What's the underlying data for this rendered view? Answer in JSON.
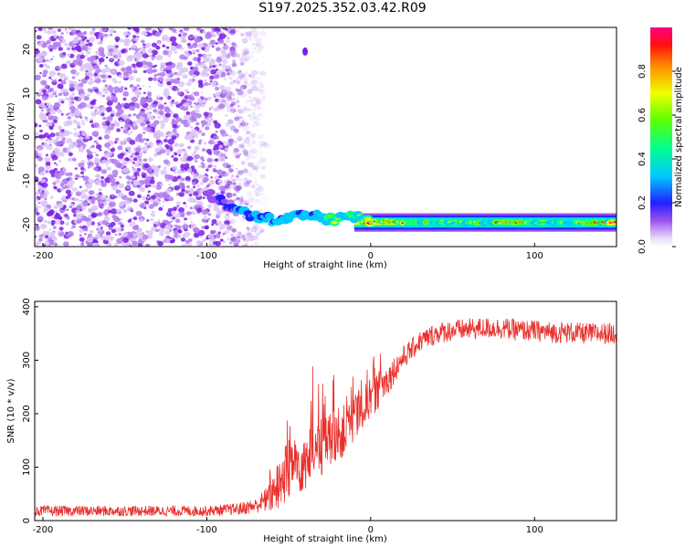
{
  "title": "S197.2025.352.03.42.R09",
  "colors": {
    "snr_line": "#e8302c",
    "speckle": "#8a2be2",
    "axis": "#000000"
  },
  "chart_data": [
    {
      "type": "heatmap",
      "title": "",
      "xlabel": "Height of straight line (km)",
      "ylabel": "Frequency (Hz)",
      "xlim": [
        -205,
        150
      ],
      "ylim": [
        -25,
        25
      ],
      "xticks": [
        -200,
        -100,
        0,
        100
      ],
      "yticks": [
        -20,
        -10,
        0,
        10,
        20
      ],
      "colorbar": {
        "label": "Normalized spectral amplitude",
        "range": [
          0,
          1
        ],
        "ticks": [
          "0.0",
          "0.2",
          "0.4",
          "0.6",
          "0.8"
        ],
        "tick_values": [
          0.0,
          0.2,
          0.4,
          0.6,
          0.8
        ]
      },
      "ridge": {
        "description_values": "frequency of the dominant return vs height",
        "x": [
          -100,
          -90,
          -80,
          -70,
          -60,
          -50,
          -40,
          -30,
          -20,
          -10,
          0,
          10,
          20,
          40,
          60,
          80,
          100,
          120,
          150
        ],
        "y": [
          -13,
          -15,
          -17,
          -18,
          -19,
          -18.5,
          -17.5,
          -18.3,
          -18.8,
          -18,
          -19.5,
          -19.2,
          -19.5,
          -19.5,
          -19.5,
          -19.5,
          -19.5,
          -19.5,
          -19.5
        ],
        "amplitude": [
          0.1,
          0.2,
          0.35,
          0.4,
          0.45,
          0.45,
          0.4,
          0.5,
          0.6,
          0.5,
          0.9,
          0.85,
          0.9,
          0.55,
          0.55,
          0.9,
          0.55,
          0.55,
          0.9
        ]
      },
      "noise_region_x": [
        -205,
        -65
      ]
    },
    {
      "type": "line",
      "title": "",
      "xlabel": "Height of straight line (km)",
      "ylabel": "SNR (10 * v/v)",
      "xlim": [
        -205,
        150
      ],
      "ylim": [
        0,
        410
      ],
      "xticks": [
        -200,
        -100,
        0,
        100
      ],
      "yticks": [
        0,
        100,
        200,
        300,
        400
      ],
      "series": [
        {
          "x": [
            -205,
            -180,
            -160,
            -140,
            -120,
            -100,
            -90,
            -80,
            -70,
            -60,
            -55,
            -50,
            -45,
            -40,
            -35,
            -30,
            -25,
            -20,
            -15,
            -10,
            -5,
            0,
            5,
            10,
            15,
            20,
            25,
            30,
            40,
            50,
            60,
            70,
            80,
            90,
            100,
            110,
            120,
            130,
            140,
            150
          ],
          "values": [
            18,
            18,
            18,
            18,
            18,
            18,
            20,
            22,
            28,
            45,
            70,
            95,
            105,
            115,
            125,
            135,
            150,
            160,
            170,
            185,
            210,
            230,
            245,
            262,
            285,
            305,
            320,
            335,
            350,
            356,
            358,
            360,
            360,
            356,
            355,
            352,
            352,
            350,
            350,
            350
          ],
          "noise_amplitude": [
            10,
            10,
            10,
            10,
            10,
            10,
            10,
            12,
            14,
            30,
            50,
            60,
            60,
            60,
            55,
            55,
            50,
            50,
            50,
            50,
            45,
            40,
            35,
            30,
            25,
            22,
            20,
            20,
            20,
            20,
            20,
            20,
            20,
            20,
            20,
            20,
            20,
            20,
            20,
            20
          ]
        }
      ]
    }
  ]
}
